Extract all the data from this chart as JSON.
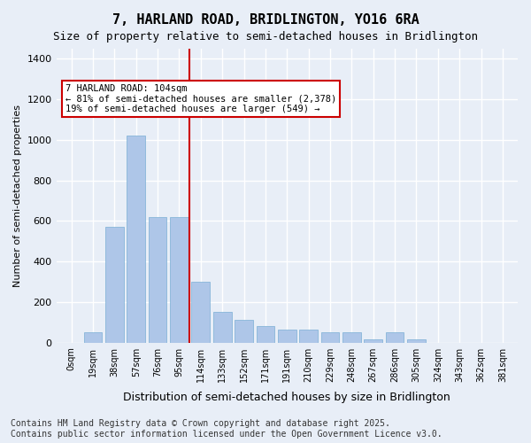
{
  "title": "7, HARLAND ROAD, BRIDLINGTON, YO16 6RA",
  "subtitle": "Size of property relative to semi-detached houses in Bridlington",
  "xlabel": "Distribution of semi-detached houses by size in Bridlington",
  "ylabel": "Number of semi-detached properties",
  "bar_color": "#aec6e8",
  "bar_edge_color": "#7aafd4",
  "background_color": "#e8eef7",
  "grid_color": "#ffffff",
  "vline_color": "#cc0000",
  "vline_x": 5,
  "annotation_text": "7 HARLAND ROAD: 104sqm\n← 81% of semi-detached houses are smaller (2,378)\n19% of semi-detached houses are larger (549) →",
  "annotation_box_color": "#ffffff",
  "annotation_box_edge": "#cc0000",
  "categories": [
    "0sqm",
    "19sqm",
    "38sqm",
    "57sqm",
    "76sqm",
    "95sqm",
    "114sqm",
    "133sqm",
    "152sqm",
    "171sqm",
    "191sqm",
    "210sqm",
    "229sqm",
    "248sqm",
    "267sqm",
    "286sqm",
    "305sqm",
    "324sqm",
    "343sqm",
    "362sqm",
    "381sqm"
  ],
  "values": [
    0,
    50,
    570,
    1020,
    620,
    620,
    300,
    150,
    110,
    80,
    65,
    65,
    50,
    50,
    15,
    50,
    15,
    0,
    0,
    0,
    0
  ],
  "ylim": [
    0,
    1450
  ],
  "yticks": [
    0,
    200,
    400,
    600,
    800,
    1000,
    1200,
    1400
  ],
  "footnote": "Contains HM Land Registry data © Crown copyright and database right 2025.\nContains public sector information licensed under the Open Government Licence v3.0.",
  "title_fontsize": 11,
  "subtitle_fontsize": 9,
  "footnote_fontsize": 7
}
